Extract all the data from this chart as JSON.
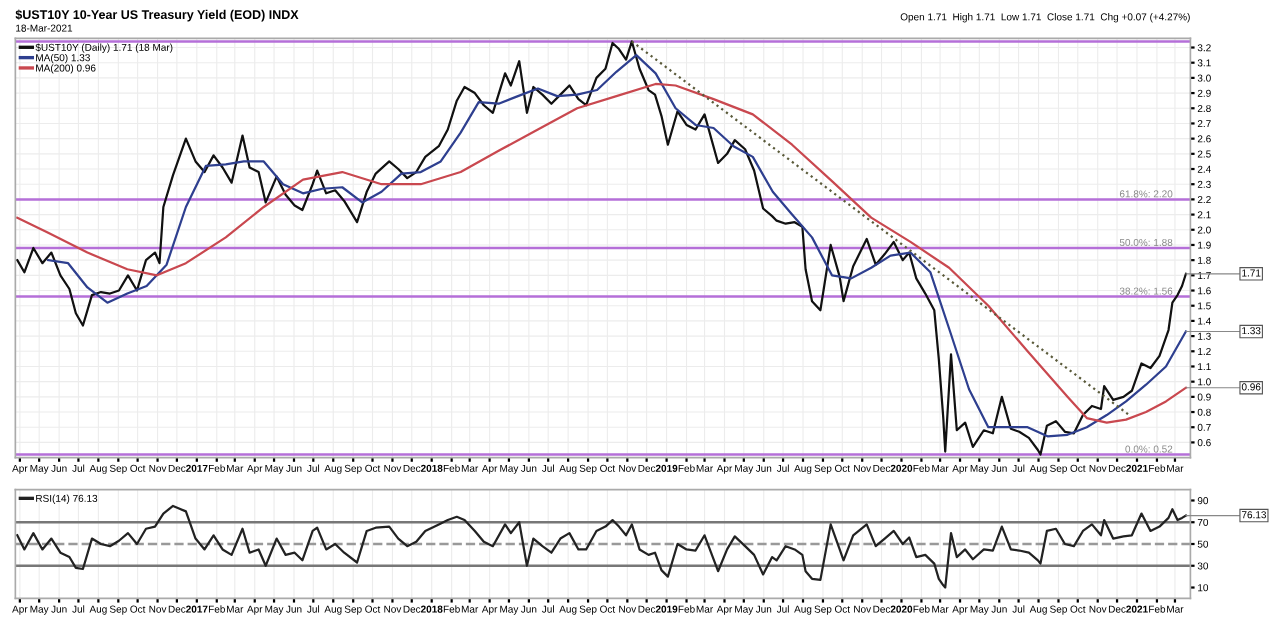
{
  "chart_data": [
    {
      "type": "line",
      "title": "$UST10Y 10-Year US Treasury Yield (EOD) INDX",
      "subtitle": "18-Mar-2021",
      "grid": true,
      "legend": "top left",
      "xlim": [
        "2016-03-25",
        "2021-03-25"
      ],
      "xticks": [
        {
          "value": "2016-04",
          "label": "Apr"
        },
        {
          "value": "2016-05",
          "label": "May"
        },
        {
          "value": "2016-06",
          "label": "Jun"
        },
        {
          "value": "2016-07",
          "label": "Jul"
        },
        {
          "value": "2016-08",
          "label": "Aug"
        },
        {
          "value": "2016-09",
          "label": "Sep"
        },
        {
          "value": "2016-10",
          "label": "Oct"
        },
        {
          "value": "2016-11",
          "label": "Nov"
        },
        {
          "value": "2016-12",
          "label": "Dec"
        },
        {
          "value": "2017-01",
          "label": "2017"
        },
        {
          "value": "2017-02",
          "label": "Feb"
        },
        {
          "value": "2017-03",
          "label": "Mar"
        },
        {
          "value": "2017-04",
          "label": "Apr"
        },
        {
          "value": "2017-05",
          "label": "May"
        },
        {
          "value": "2017-06",
          "label": "Jun"
        },
        {
          "value": "2017-07",
          "label": "Jul"
        },
        {
          "value": "2017-08",
          "label": "Aug"
        },
        {
          "value": "2017-09",
          "label": "Sep"
        },
        {
          "value": "2017-10",
          "label": "Oct"
        },
        {
          "value": "2017-11",
          "label": "Nov"
        },
        {
          "value": "2017-12",
          "label": "Dec"
        },
        {
          "value": "2018-01",
          "label": "2018"
        },
        {
          "value": "2018-02",
          "label": "Feb"
        },
        {
          "value": "2018-03",
          "label": "Mar"
        },
        {
          "value": "2018-04",
          "label": "Apr"
        },
        {
          "value": "2018-05",
          "label": "May"
        },
        {
          "value": "2018-06",
          "label": "Jun"
        },
        {
          "value": "2018-07",
          "label": "Jul"
        },
        {
          "value": "2018-08",
          "label": "Aug"
        },
        {
          "value": "2018-09",
          "label": "Sep"
        },
        {
          "value": "2018-10",
          "label": "Oct"
        },
        {
          "value": "2018-11",
          "label": "Nov"
        },
        {
          "value": "2018-12",
          "label": "Dec"
        },
        {
          "value": "2019-01",
          "label": "2019"
        },
        {
          "value": "2019-02",
          "label": "Feb"
        },
        {
          "value": "2019-03",
          "label": "Mar"
        },
        {
          "value": "2019-04",
          "label": "Apr"
        },
        {
          "value": "2019-05",
          "label": "May"
        },
        {
          "value": "2019-06",
          "label": "Jun"
        },
        {
          "value": "2019-07",
          "label": "Jul"
        },
        {
          "value": "2019-08",
          "label": "Aug"
        },
        {
          "value": "2019-09",
          "label": "Sep"
        },
        {
          "value": "2019-10",
          "label": "Oct"
        },
        {
          "value": "2019-11",
          "label": "Nov"
        },
        {
          "value": "2019-12",
          "label": "Dec"
        },
        {
          "value": "2020-01",
          "label": "2020"
        },
        {
          "value": "2020-02",
          "label": "Feb"
        },
        {
          "value": "2020-03",
          "label": "Mar"
        },
        {
          "value": "2020-04",
          "label": "Apr"
        },
        {
          "value": "2020-05",
          "label": "May"
        },
        {
          "value": "2020-06",
          "label": "Jun"
        },
        {
          "value": "2020-07",
          "label": "Jul"
        },
        {
          "value": "2020-08",
          "label": "Aug"
        },
        {
          "value": "2020-09",
          "label": "Sep"
        },
        {
          "value": "2020-10",
          "label": "Oct"
        },
        {
          "value": "2020-11",
          "label": "Nov"
        },
        {
          "value": "2020-12",
          "label": "Dec"
        },
        {
          "value": "2021-01",
          "label": "2021"
        },
        {
          "value": "2021-02",
          "label": "Feb"
        },
        {
          "value": "2021-03",
          "label": "Mar"
        }
      ],
      "ylim": [
        0.5,
        3.26
      ],
      "yticks": [
        0.6,
        0.7,
        0.8,
        0.9,
        {
          "value": 1,
          "label": "1.0"
        },
        1.1,
        1.2,
        1.3,
        1.4,
        1.5,
        1.6,
        1.7,
        1.8,
        1.9,
        {
          "value": 2,
          "label": "2.0"
        },
        2.1,
        2.2,
        2.3,
        2.4,
        2.5,
        2.6,
        2.7,
        2.8,
        2.9,
        {
          "value": 3,
          "label": "3.0"
        },
        3.1,
        3.2
      ],
      "ref_lines": [
        {
          "axis": "y",
          "value": 3.24,
          "label": null,
          "color": "#b56fd8"
        },
        {
          "axis": "y",
          "value": 2.2,
          "label": "61.8%: 2.20",
          "color": "#b56fd8"
        },
        {
          "axis": "y",
          "value": 1.88,
          "label": "50.0%: 1.88",
          "color": "#b56fd8"
        },
        {
          "axis": "y",
          "value": 1.56,
          "label": "38.2%: 1.56",
          "color": "#b56fd8"
        },
        {
          "axis": "y",
          "value": 0.52,
          "label": "0.0%: 0.52",
          "color": "#b56fd8"
        }
      ],
      "annotations": [
        "Open 1.71  High 1.71  Low 1.71  Close 1.71  Chg +0.07 (+4.27%)",
        {
          "text": "1.71",
          "x": "2021-03-18",
          "y": 1.71
        },
        {
          "text": "1.33",
          "x": "2021-03-18",
          "y": 1.33
        },
        {
          "text": "0.96",
          "x": "2021-03-18",
          "y": 0.96
        }
      ],
      "series": [
        {
          "name": "$UST10Y (Daily) 1.71 (18 Mar)",
          "color": "#111111",
          "x": [
            "2016-03-28",
            "2016-04-08",
            "2016-04-22",
            "2016-05-06",
            "2016-05-20",
            "2016-06-03",
            "2016-06-17",
            "2016-06-27",
            "2016-07-08",
            "2016-07-22",
            "2016-08-05",
            "2016-08-19",
            "2016-09-02",
            "2016-09-16",
            "2016-09-30",
            "2016-10-14",
            "2016-10-28",
            "2016-11-04",
            "2016-11-10",
            "2016-11-25",
            "2016-12-15",
            "2016-12-30",
            "2017-01-13",
            "2017-01-27",
            "2017-02-10",
            "2017-02-24",
            "2017-03-13",
            "2017-03-24",
            "2017-04-07",
            "2017-04-18",
            "2017-05-05",
            "2017-05-19",
            "2017-06-02",
            "2017-06-14",
            "2017-06-30",
            "2017-07-07",
            "2017-07-21",
            "2017-08-04",
            "2017-08-18",
            "2017-09-07",
            "2017-09-22",
            "2017-10-06",
            "2017-10-27",
            "2017-11-10",
            "2017-11-24",
            "2017-12-08",
            "2017-12-22",
            "2018-01-12",
            "2018-01-26",
            "2018-02-09",
            "2018-02-21",
            "2018-03-09",
            "2018-03-23",
            "2018-04-06",
            "2018-04-25",
            "2018-05-04",
            "2018-05-17",
            "2018-05-29",
            "2018-06-08",
            "2018-06-22",
            "2018-07-06",
            "2018-07-20",
            "2018-08-03",
            "2018-08-17",
            "2018-08-29",
            "2018-09-14",
            "2018-09-28",
            "2018-10-09",
            "2018-10-19",
            "2018-10-30",
            "2018-11-08",
            "2018-11-20",
            "2018-12-04",
            "2018-12-14",
            "2018-12-24",
            "2019-01-03",
            "2019-01-18",
            "2019-02-01",
            "2019-02-15",
            "2019-03-01",
            "2019-03-22",
            "2019-04-05",
            "2019-04-17",
            "2019-05-03",
            "2019-05-17",
            "2019-05-31",
            "2019-06-14",
            "2019-06-21",
            "2019-07-05",
            "2019-07-19",
            "2019-07-31",
            "2019-08-05",
            "2019-08-15",
            "2019-08-28",
            "2019-09-13",
            "2019-09-27",
            "2019-10-03",
            "2019-10-18",
            "2019-11-08",
            "2019-11-22",
            "2019-12-06",
            "2019-12-20",
            "2020-01-03",
            "2020-01-13",
            "2020-01-24",
            "2020-02-07",
            "2020-02-21",
            "2020-02-28",
            "2020-03-06",
            "2020-03-09",
            "2020-03-18",
            "2020-03-27",
            "2020-04-09",
            "2020-04-21",
            "2020-05-08",
            "2020-05-22",
            "2020-06-05",
            "2020-06-19",
            "2020-07-02",
            "2020-07-17",
            "2020-07-31",
            "2020-08-04",
            "2020-08-14",
            "2020-08-28",
            "2020-09-11",
            "2020-09-25",
            "2020-10-09",
            "2020-10-23",
            "2020-11-06",
            "2020-11-11",
            "2020-11-25",
            "2020-12-11",
            "2020-12-24",
            "2021-01-08",
            "2021-01-22",
            "2021-02-05",
            "2021-02-19",
            "2021-02-25",
            "2021-03-05",
            "2021-03-12",
            "2021-03-18"
          ],
          "values": [
            1.8,
            1.72,
            1.88,
            1.78,
            1.85,
            1.7,
            1.61,
            1.45,
            1.37,
            1.57,
            1.59,
            1.58,
            1.6,
            1.7,
            1.6,
            1.8,
            1.85,
            1.78,
            2.15,
            2.36,
            2.6,
            2.45,
            2.38,
            2.49,
            2.41,
            2.31,
            2.62,
            2.41,
            2.38,
            2.18,
            2.35,
            2.23,
            2.16,
            2.13,
            2.3,
            2.39,
            2.24,
            2.26,
            2.19,
            2.05,
            2.25,
            2.37,
            2.45,
            2.4,
            2.34,
            2.38,
            2.48,
            2.55,
            2.66,
            2.85,
            2.94,
            2.9,
            2.82,
            2.77,
            3.03,
            2.95,
            3.11,
            2.77,
            2.94,
            2.89,
            2.83,
            2.89,
            2.95,
            2.86,
            2.82,
            3.0,
            3.06,
            3.23,
            3.19,
            3.12,
            3.24,
            3.06,
            2.92,
            2.89,
            2.75,
            2.56,
            2.78,
            2.69,
            2.66,
            2.76,
            2.44,
            2.5,
            2.59,
            2.53,
            2.39,
            2.14,
            2.09,
            2.06,
            2.04,
            2.05,
            2.02,
            1.74,
            1.53,
            1.47,
            1.9,
            1.69,
            1.53,
            1.76,
            1.94,
            1.77,
            1.84,
            1.92,
            1.8,
            1.85,
            1.68,
            1.58,
            1.47,
            1.15,
            0.76,
            0.54,
            1.18,
            0.68,
            0.73,
            0.57,
            0.68,
            0.66,
            0.9,
            0.69,
            0.67,
            0.63,
            0.55,
            0.52,
            0.71,
            0.74,
            0.67,
            0.66,
            0.78,
            0.84,
            0.82,
            0.97,
            0.88,
            0.9,
            0.94,
            1.12,
            1.09,
            1.17,
            1.34,
            1.52,
            1.57,
            1.63,
            1.71
          ]
        },
        {
          "name": "MA(50) 1.33",
          "color": "#2e3f8f",
          "x": [
            "2016-05-15",
            "2016-06-15",
            "2016-07-15",
            "2016-08-15",
            "2016-09-15",
            "2016-10-15",
            "2016-11-15",
            "2016-12-15",
            "2017-01-15",
            "2017-02-15",
            "2017-03-15",
            "2017-04-15",
            "2017-05-15",
            "2017-06-15",
            "2017-07-15",
            "2017-08-15",
            "2017-09-15",
            "2017-10-15",
            "2017-11-15",
            "2017-12-15",
            "2018-01-15",
            "2018-02-15",
            "2018-03-15",
            "2018-04-15",
            "2018-05-15",
            "2018-06-15",
            "2018-07-15",
            "2018-08-15",
            "2018-09-15",
            "2018-10-15",
            "2018-11-15",
            "2018-12-15",
            "2019-01-15",
            "2019-02-15",
            "2019-03-15",
            "2019-04-15",
            "2019-05-15",
            "2019-06-15",
            "2019-07-15",
            "2019-08-15",
            "2019-09-15",
            "2019-10-15",
            "2019-11-15",
            "2019-12-15",
            "2020-01-15",
            "2020-02-15",
            "2020-03-15",
            "2020-04-15",
            "2020-05-15",
            "2020-06-15",
            "2020-07-15",
            "2020-08-15",
            "2020-09-15",
            "2020-10-15",
            "2020-11-15",
            "2020-12-15",
            "2021-01-15",
            "2021-02-15",
            "2021-03-18"
          ],
          "values": [
            1.8,
            1.78,
            1.62,
            1.52,
            1.58,
            1.63,
            1.77,
            2.15,
            2.42,
            2.43,
            2.45,
            2.45,
            2.3,
            2.24,
            2.27,
            2.28,
            2.18,
            2.25,
            2.37,
            2.38,
            2.45,
            2.64,
            2.84,
            2.83,
            2.88,
            2.93,
            2.88,
            2.89,
            2.92,
            3.04,
            3.15,
            3.03,
            2.8,
            2.69,
            2.67,
            2.55,
            2.48,
            2.25,
            2.1,
            1.95,
            1.7,
            1.68,
            1.75,
            1.83,
            1.85,
            1.72,
            1.35,
            0.95,
            0.7,
            0.7,
            0.7,
            0.64,
            0.65,
            0.7,
            0.78,
            0.87,
            0.98,
            1.1,
            1.33
          ]
        },
        {
          "name": "MA(200) 0.96",
          "color": "#c9484f",
          "x": [
            "2016-03-28",
            "2016-05-15",
            "2016-07-15",
            "2016-09-15",
            "2016-10-31",
            "2016-12-15",
            "2017-02-15",
            "2017-04-15",
            "2017-06-15",
            "2017-08-15",
            "2017-10-15",
            "2017-12-15",
            "2018-02-15",
            "2018-04-15",
            "2018-06-15",
            "2018-08-15",
            "2018-10-15",
            "2018-12-15",
            "2019-01-15",
            "2019-03-15",
            "2019-05-15",
            "2019-07-15",
            "2019-09-15",
            "2019-11-15",
            "2020-01-15",
            "2020-03-15",
            "2020-05-15",
            "2020-07-15",
            "2020-09-15",
            "2020-10-15",
            "2020-11-15",
            "2020-12-15",
            "2021-01-15",
            "2021-02-15",
            "2021-03-18"
          ],
          "values": [
            2.08,
            1.98,
            1.85,
            1.74,
            1.7,
            1.78,
            1.95,
            2.15,
            2.33,
            2.38,
            2.3,
            2.3,
            2.38,
            2.52,
            2.66,
            2.8,
            2.88,
            2.96,
            2.95,
            2.86,
            2.76,
            2.56,
            2.32,
            2.08,
            1.92,
            1.75,
            1.5,
            1.2,
            0.9,
            0.76,
            0.73,
            0.75,
            0.8,
            0.87,
            0.96
          ]
        },
        {
          "color": "#5a5a3a",
          "line_style": "dotted",
          "x": [
            "2018-11-08",
            "2020-12-20"
          ],
          "values": [
            3.24,
            0.78
          ]
        }
      ]
    },
    {
      "type": "line",
      "grid": "x",
      "legend": "top left",
      "xlim": [
        "2016-03-25",
        "2021-03-25"
      ],
      "xticks": [
        {
          "value": "2016-04",
          "label": "Apr"
        },
        {
          "value": "2016-05",
          "label": "May"
        },
        {
          "value": "2016-06",
          "label": "Jun"
        },
        {
          "value": "2016-07",
          "label": "Jul"
        },
        {
          "value": "2016-08",
          "label": "Aug"
        },
        {
          "value": "2016-09",
          "label": "Sep"
        },
        {
          "value": "2016-10",
          "label": "Oct"
        },
        {
          "value": "2016-11",
          "label": "Nov"
        },
        {
          "value": "2016-12",
          "label": "Dec"
        },
        {
          "value": "2017-01",
          "label": "2017"
        },
        {
          "value": "2017-02",
          "label": "Feb"
        },
        {
          "value": "2017-03",
          "label": "Mar"
        },
        {
          "value": "2017-04",
          "label": "Apr"
        },
        {
          "value": "2017-05",
          "label": "May"
        },
        {
          "value": "2017-06",
          "label": "Jun"
        },
        {
          "value": "2017-07",
          "label": "Jul"
        },
        {
          "value": "2017-08",
          "label": "Aug"
        },
        {
          "value": "2017-09",
          "label": "Sep"
        },
        {
          "value": "2017-10",
          "label": "Oct"
        },
        {
          "value": "2017-11",
          "label": "Nov"
        },
        {
          "value": "2017-12",
          "label": "Dec"
        },
        {
          "value": "2018-01",
          "label": "2018"
        },
        {
          "value": "2018-02",
          "label": "Feb"
        },
        {
          "value": "2018-03",
          "label": "Mar"
        },
        {
          "value": "2018-04",
          "label": "Apr"
        },
        {
          "value": "2018-05",
          "label": "May"
        },
        {
          "value": "2018-06",
          "label": "Jun"
        },
        {
          "value": "2018-07",
          "label": "Jul"
        },
        {
          "value": "2018-08",
          "label": "Aug"
        },
        {
          "value": "2018-09",
          "label": "Sep"
        },
        {
          "value": "2018-10",
          "label": "Oct"
        },
        {
          "value": "2018-11",
          "label": "Nov"
        },
        {
          "value": "2018-12",
          "label": "Dec"
        },
        {
          "value": "2019-01",
          "label": "2019"
        },
        {
          "value": "2019-02",
          "label": "Feb"
        },
        {
          "value": "2019-03",
          "label": "Mar"
        },
        {
          "value": "2019-04",
          "label": "Apr"
        },
        {
          "value": "2019-05",
          "label": "May"
        },
        {
          "value": "2019-06",
          "label": "Jun"
        },
        {
          "value": "2019-07",
          "label": "Jul"
        },
        {
          "value": "2019-08",
          "label": "Aug"
        },
        {
          "value": "2019-09",
          "label": "Sep"
        },
        {
          "value": "2019-10",
          "label": "Oct"
        },
        {
          "value": "2019-11",
          "label": "Nov"
        },
        {
          "value": "2019-12",
          "label": "Dec"
        },
        {
          "value": "2020-01",
          "label": "2020"
        },
        {
          "value": "2020-02",
          "label": "Feb"
        },
        {
          "value": "2020-03",
          "label": "Mar"
        },
        {
          "value": "2020-04",
          "label": "Apr"
        },
        {
          "value": "2020-05",
          "label": "May"
        },
        {
          "value": "2020-06",
          "label": "Jun"
        },
        {
          "value": "2020-07",
          "label": "Jul"
        },
        {
          "value": "2020-08",
          "label": "Aug"
        },
        {
          "value": "2020-09",
          "label": "Sep"
        },
        {
          "value": "2020-10",
          "label": "Oct"
        },
        {
          "value": "2020-11",
          "label": "Nov"
        },
        {
          "value": "2020-12",
          "label": "Dec"
        },
        {
          "value": "2021-01",
          "label": "2021"
        },
        {
          "value": "2021-02",
          "label": "Feb"
        },
        {
          "value": "2021-03",
          "label": "Mar"
        }
      ],
      "ylim": [
        0,
        100
      ],
      "yticks": [
        10,
        30,
        50,
        70,
        90
      ],
      "ref_lines": [
        {
          "axis": "y",
          "value": 70,
          "label": null,
          "color": "#777777"
        },
        {
          "axis": "y",
          "value": 50,
          "label": null,
          "color": "#999999",
          "line_style": "dashed"
        },
        {
          "axis": "y",
          "value": 30,
          "label": null,
          "color": "#777777"
        }
      ],
      "annotations": [
        {
          "text": "76.13",
          "x": "2021-03-18",
          "y": 76.13
        }
      ],
      "series": [
        {
          "name": "RSI(14) 76.13",
          "color": "#222222",
          "x": [
            "2016-03-28",
            "2016-04-08",
            "2016-04-22",
            "2016-05-06",
            "2016-05-20",
            "2016-06-03",
            "2016-06-17",
            "2016-06-27",
            "2016-07-08",
            "2016-07-22",
            "2016-08-05",
            "2016-08-19",
            "2016-09-02",
            "2016-09-16",
            "2016-09-30",
            "2016-10-14",
            "2016-10-28",
            "2016-11-10",
            "2016-11-25",
            "2016-12-15",
            "2016-12-30",
            "2017-01-13",
            "2017-01-27",
            "2017-02-10",
            "2017-02-24",
            "2017-03-13",
            "2017-03-24",
            "2017-04-07",
            "2017-04-18",
            "2017-05-05",
            "2017-05-19",
            "2017-06-02",
            "2017-06-14",
            "2017-06-30",
            "2017-07-07",
            "2017-07-21",
            "2017-08-04",
            "2017-08-18",
            "2017-09-07",
            "2017-09-22",
            "2017-10-06",
            "2017-10-27",
            "2017-11-10",
            "2017-11-24",
            "2017-12-08",
            "2017-12-22",
            "2018-01-12",
            "2018-01-26",
            "2018-02-09",
            "2018-02-21",
            "2018-03-09",
            "2018-03-23",
            "2018-04-06",
            "2018-04-25",
            "2018-05-04",
            "2018-05-17",
            "2018-05-29",
            "2018-06-08",
            "2018-06-22",
            "2018-07-06",
            "2018-07-20",
            "2018-08-03",
            "2018-08-17",
            "2018-08-29",
            "2018-09-14",
            "2018-09-28",
            "2018-10-09",
            "2018-10-19",
            "2018-10-30",
            "2018-11-08",
            "2018-11-20",
            "2018-12-04",
            "2018-12-14",
            "2018-12-24",
            "2019-01-03",
            "2019-01-18",
            "2019-02-01",
            "2019-02-15",
            "2019-03-01",
            "2019-03-22",
            "2019-04-05",
            "2019-04-17",
            "2019-05-03",
            "2019-05-17",
            "2019-05-31",
            "2019-06-14",
            "2019-06-21",
            "2019-07-05",
            "2019-07-19",
            "2019-07-31",
            "2019-08-05",
            "2019-08-15",
            "2019-08-28",
            "2019-09-13",
            "2019-09-27",
            "2019-10-03",
            "2019-10-18",
            "2019-11-08",
            "2019-11-22",
            "2019-12-06",
            "2019-12-20",
            "2020-01-03",
            "2020-01-13",
            "2020-01-24",
            "2020-02-07",
            "2020-02-21",
            "2020-02-28",
            "2020-03-06",
            "2020-03-09",
            "2020-03-18",
            "2020-03-27",
            "2020-04-09",
            "2020-04-21",
            "2020-05-08",
            "2020-05-22",
            "2020-06-05",
            "2020-06-19",
            "2020-07-02",
            "2020-07-17",
            "2020-07-31",
            "2020-08-04",
            "2020-08-14",
            "2020-08-28",
            "2020-09-11",
            "2020-09-25",
            "2020-10-09",
            "2020-10-23",
            "2020-11-06",
            "2020-11-11",
            "2020-11-25",
            "2020-12-11",
            "2020-12-24",
            "2021-01-08",
            "2021-01-22",
            "2021-02-05",
            "2021-02-19",
            "2021-02-25",
            "2021-03-05",
            "2021-03-12",
            "2021-03-18"
          ],
          "values": [
            58,
            45,
            60,
            45,
            55,
            42,
            38,
            28,
            27,
            55,
            50,
            48,
            53,
            60,
            50,
            64,
            66,
            78,
            85,
            80,
            55,
            45,
            58,
            45,
            40,
            64,
            42,
            45,
            30,
            55,
            40,
            42,
            35,
            62,
            65,
            45,
            50,
            42,
            33,
            62,
            65,
            66,
            55,
            48,
            52,
            62,
            68,
            72,
            75,
            72,
            62,
            52,
            48,
            68,
            60,
            70,
            30,
            55,
            48,
            42,
            55,
            60,
            45,
            45,
            62,
            66,
            72,
            66,
            58,
            68,
            45,
            40,
            42,
            26,
            20,
            50,
            45,
            44,
            58,
            25,
            45,
            57,
            48,
            40,
            22,
            38,
            35,
            48,
            45,
            40,
            25,
            18,
            17,
            68,
            45,
            35,
            58,
            68,
            48,
            55,
            62,
            50,
            56,
            38,
            40,
            32,
            18,
            12,
            10,
            60,
            38,
            45,
            36,
            45,
            44,
            66,
            45,
            44,
            42,
            35,
            32,
            62,
            64,
            50,
            48,
            62,
            68,
            58,
            72,
            55,
            57,
            58,
            78,
            62,
            66,
            74,
            82,
            72,
            74,
            76.13
          ]
        }
      ]
    }
  ]
}
